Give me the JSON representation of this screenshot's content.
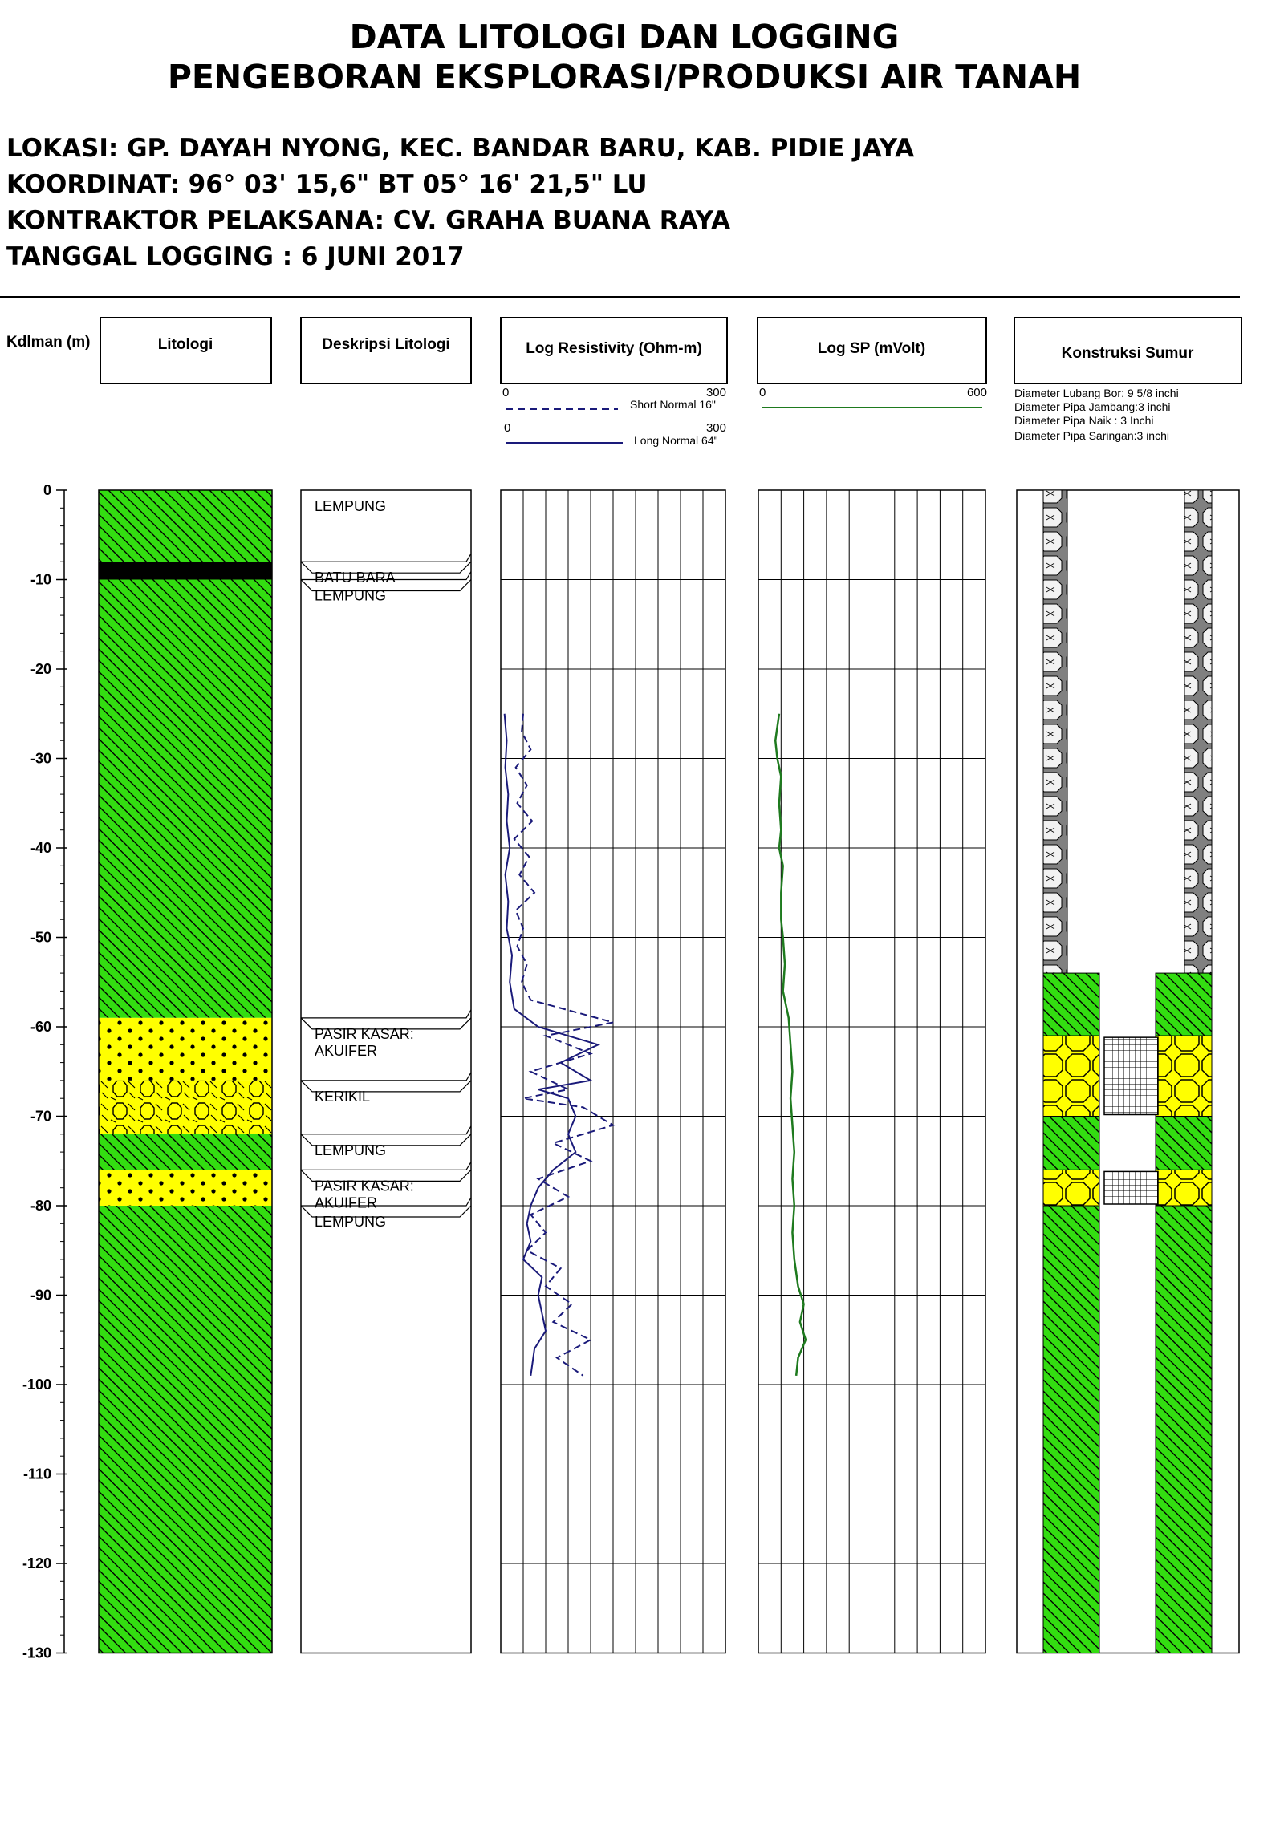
{
  "title": {
    "line1": "DATA LITOLOGI DAN LOGGING",
    "line2": "PENGEBORAN EKSPLORASI/PRODUKSI AIR TANAH"
  },
  "info": {
    "lokasi": "LOKASI: GP. DAYAH NYONG, KEC. BANDAR BARU, KAB. PIDIE JAYA",
    "koordinat": "KOORDINAT: 96° 03' 15,6\" BT 05° 16' 21,5\" LU",
    "kontraktor": "KONTRAKTOR PELAKSANA:  CV. GRAHA BUANA RAYA",
    "tanggal": "TANGGAL LOGGING :  6 JUNI 2017"
  },
  "headers": {
    "depth": "Kdlman (m)",
    "litologi": "Litologi",
    "deskripsi": "Deskripsi Litologi",
    "resistivity": "Log Resistivity (Ohm-m)",
    "sp": "Log SP (mVolt)",
    "konstruksi": "Konstruksi Sumur"
  },
  "legend": {
    "short_normal": "Short Normal 16\"",
    "long_normal": "Long Normal 64\"",
    "res_min": "0",
    "res_max": "300",
    "sp_min": "0",
    "sp_max": "600",
    "diameter_bor": "Diameter Lubang Bor: 9 5/8 inchi",
    "diameter_jambang": "Diameter Pipa Jambang:3 inchi",
    "diameter_naik": "Diameter Pipa Naik :  3 Inchi",
    "diameter_saringan": "Diameter Pipa Saringan:3  inchi"
  },
  "colors": {
    "lempung": "#33dd11",
    "pasir": "#ffff00",
    "batubara": "#000000",
    "short_normal": "#1a1a7a",
    "long_normal": "#1a1a7a",
    "sp": "#1e7a1e",
    "casing": "#808080"
  },
  "depth_axis": {
    "min": 0,
    "max": -130,
    "ticks": [
      0,
      -10,
      -20,
      -30,
      -40,
      -50,
      -60,
      -70,
      -80,
      -90,
      -100,
      -110,
      -120,
      -130
    ],
    "tick_labels": [
      "0",
      "-10",
      "-20",
      "-30",
      "-40",
      "-50",
      "-60",
      "-70",
      "-80",
      "-90",
      "-100",
      "-110",
      "-120",
      "-130"
    ]
  },
  "lithology": [
    {
      "top": 0,
      "bottom": 8,
      "type": "lempung"
    },
    {
      "top": 8,
      "bottom": 10,
      "type": "batubara"
    },
    {
      "top": 10,
      "bottom": 59,
      "type": "lempung"
    },
    {
      "top": 59,
      "bottom": 66,
      "type": "pasir"
    },
    {
      "top": 66,
      "bottom": 72,
      "type": "kerikil"
    },
    {
      "top": 72,
      "bottom": 76,
      "type": "lempung"
    },
    {
      "top": 76,
      "bottom": 80,
      "type": "pasir"
    },
    {
      "top": 80,
      "bottom": 130,
      "type": "lempung"
    }
  ],
  "descriptions": [
    {
      "top": 0,
      "bottom": 8,
      "lines": [
        "LEMPUNG"
      ]
    },
    {
      "top": 8,
      "bottom": 10,
      "lines": [
        "BATU BARA"
      ]
    },
    {
      "top": 10,
      "bottom": 59,
      "lines": [
        "LEMPUNG"
      ]
    },
    {
      "top": 59,
      "bottom": 66,
      "lines": [
        "PASIR KASAR:",
        "AKUIFER"
      ]
    },
    {
      "top": 66,
      "bottom": 72,
      "lines": [
        "KERIKIL"
      ]
    },
    {
      "top": 72,
      "bottom": 76,
      "lines": [
        "LEMPUNG"
      ]
    },
    {
      "top": 76,
      "bottom": 80,
      "lines": [
        "PASIR KASAR:",
        "AKUIFER"
      ]
    },
    {
      "top": 80,
      "bottom": 130,
      "lines": [
        "LEMPUNG"
      ]
    }
  ],
  "well_construction": {
    "casing": {
      "top": 0,
      "bottom": 54
    },
    "fill_layers": [
      {
        "top": 54,
        "bottom": 61,
        "type": "lempung"
      },
      {
        "top": 61,
        "bottom": 70,
        "type": "kerikil"
      },
      {
        "top": 70,
        "bottom": 76,
        "type": "lempung"
      },
      {
        "top": 76,
        "bottom": 80,
        "type": "kerikil"
      },
      {
        "top": 80,
        "bottom": 130,
        "type": "lempung"
      }
    ],
    "screens": [
      {
        "top": 61,
        "bottom": 70
      },
      {
        "top": 76,
        "bottom": 80
      }
    ]
  },
  "chart_data": {
    "type": "line",
    "ylabel": "Kdlman (m)",
    "ylim": [
      0,
      -130
    ],
    "series": [
      {
        "name": "Short Normal 16\"",
        "xlim": [
          0,
          300
        ],
        "points": [
          [
            30,
            -25
          ],
          [
            28,
            -27
          ],
          [
            40,
            -29
          ],
          [
            20,
            -31
          ],
          [
            35,
            -33
          ],
          [
            22,
            -35
          ],
          [
            42,
            -37
          ],
          [
            18,
            -39
          ],
          [
            38,
            -41
          ],
          [
            25,
            -43
          ],
          [
            45,
            -45
          ],
          [
            20,
            -47
          ],
          [
            30,
            -49
          ],
          [
            22,
            -51
          ],
          [
            35,
            -53
          ],
          [
            28,
            -55
          ],
          [
            40,
            -57
          ],
          [
            150,
            -59.5
          ],
          [
            60,
            -61
          ],
          [
            120,
            -63
          ],
          [
            40,
            -65
          ],
          [
            90,
            -67
          ],
          [
            30,
            -68
          ],
          [
            110,
            -69
          ],
          [
            150,
            -71
          ],
          [
            70,
            -73
          ],
          [
            120,
            -75
          ],
          [
            50,
            -77
          ],
          [
            90,
            -79
          ],
          [
            40,
            -81
          ],
          [
            60,
            -83
          ],
          [
            35,
            -85
          ],
          [
            80,
            -87
          ],
          [
            60,
            -89
          ],
          [
            95,
            -91
          ],
          [
            70,
            -93
          ],
          [
            120,
            -95
          ],
          [
            75,
            -97
          ],
          [
            110,
            -99
          ]
        ]
      },
      {
        "name": "Long Normal 64\"",
        "xlim": [
          0,
          300
        ],
        "points": [
          [
            5,
            -25
          ],
          [
            8,
            -28
          ],
          [
            6,
            -31
          ],
          [
            10,
            -34
          ],
          [
            8,
            -37
          ],
          [
            12,
            -40
          ],
          [
            6,
            -43
          ],
          [
            10,
            -46
          ],
          [
            8,
            -49
          ],
          [
            15,
            -52
          ],
          [
            12,
            -55
          ],
          [
            18,
            -58
          ],
          [
            50,
            -60
          ],
          [
            90,
            -61
          ],
          [
            130,
            -62
          ],
          [
            80,
            -64
          ],
          [
            120,
            -66
          ],
          [
            50,
            -67
          ],
          [
            90,
            -68
          ],
          [
            100,
            -70
          ],
          [
            90,
            -72
          ],
          [
            100,
            -74
          ],
          [
            70,
            -76
          ],
          [
            50,
            -78
          ],
          [
            40,
            -80
          ],
          [
            35,
            -82
          ],
          [
            40,
            -84
          ],
          [
            30,
            -86
          ],
          [
            55,
            -88
          ],
          [
            50,
            -90
          ],
          [
            55,
            -92
          ],
          [
            60,
            -94
          ],
          [
            45,
            -96
          ],
          [
            40,
            -99
          ]
        ]
      },
      {
        "name": "Log SP",
        "xlim": [
          0,
          600
        ],
        "points": [
          [
            55,
            -25
          ],
          [
            45,
            -28
          ],
          [
            50,
            -30
          ],
          [
            60,
            -32
          ],
          [
            55,
            -35
          ],
          [
            60,
            -38
          ],
          [
            55,
            -40
          ],
          [
            65,
            -42
          ],
          [
            60,
            -45
          ],
          [
            60,
            -48
          ],
          [
            65,
            -50
          ],
          [
            70,
            -53
          ],
          [
            65,
            -56
          ],
          [
            80,
            -59
          ],
          [
            85,
            -62
          ],
          [
            90,
            -65
          ],
          [
            85,
            -68
          ],
          [
            90,
            -71
          ],
          [
            95,
            -74
          ],
          [
            90,
            -77
          ],
          [
            95,
            -80
          ],
          [
            90,
            -83
          ],
          [
            95,
            -86
          ],
          [
            105,
            -89
          ],
          [
            120,
            -91
          ],
          [
            110,
            -93
          ],
          [
            125,
            -95
          ],
          [
            105,
            -97
          ],
          [
            100,
            -99
          ]
        ]
      }
    ]
  }
}
